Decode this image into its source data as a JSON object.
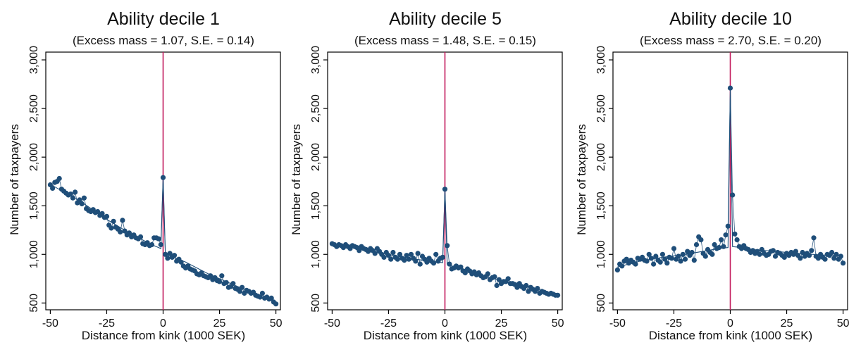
{
  "chart_data": [
    {
      "type": "scatter",
      "title": "Ability decile 1",
      "subtitle": "(Excess mass = 1.07, S.E. = 0.14)",
      "xlabel": "Distance from kink (1000 SEK)",
      "ylabel": "Number of taxpayers",
      "xlim": [
        -52,
        52
      ],
      "ylim": [
        430,
        3080
      ],
      "xticks": [
        -50,
        -25,
        0,
        25,
        50
      ],
      "xtick_labels": [
        "-50",
        "-25",
        "0",
        "25",
        "50"
      ],
      "yticks": [
        500,
        1000,
        1500,
        2000,
        2500,
        3000
      ],
      "ytick_labels": [
        "500",
        "1,000",
        "1,500",
        "2,000",
        "2,500",
        "3,000"
      ],
      "kink_x": 0,
      "colors": {
        "points": "#1f4e79",
        "line": "#1f4e79",
        "kink": "#c2185b",
        "frame": "#000000"
      },
      "series": [
        {
          "x": [
            -50,
            -49,
            -48,
            -47,
            -46,
            -45,
            -44,
            -43,
            -42,
            -41,
            -40,
            -39,
            -38,
            -37,
            -36,
            -35,
            -34,
            -33,
            -32,
            -31,
            -30,
            -29,
            -28,
            -27,
            -26,
            -25,
            -24,
            -23,
            -22,
            -21,
            -20,
            -19,
            -18,
            -17,
            -16,
            -15,
            -14,
            -13,
            -12,
            -11,
            -10,
            -9,
            -8,
            -7,
            -6,
            -5,
            -4,
            -3,
            -2,
            -1,
            0,
            1,
            2,
            3,
            4,
            5,
            6,
            7,
            8,
            9,
            10,
            11,
            12,
            13,
            14,
            15,
            16,
            17,
            18,
            19,
            20,
            21,
            22,
            23,
            24,
            25,
            26,
            27,
            28,
            29,
            30,
            31,
            32,
            33,
            34,
            35,
            36,
            37,
            38,
            39,
            40,
            41,
            42,
            43,
            44,
            45,
            46,
            47,
            48,
            49,
            50
          ],
          "y": [
            1715,
            1680,
            1740,
            1750,
            1780,
            1670,
            1650,
            1630,
            1610,
            1620,
            1580,
            1640,
            1530,
            1560,
            1520,
            1580,
            1470,
            1450,
            1440,
            1460,
            1430,
            1440,
            1400,
            1420,
            1380,
            1390,
            1300,
            1270,
            1340,
            1280,
            1260,
            1230,
            1350,
            1240,
            1200,
            1220,
            1180,
            1200,
            1170,
            1160,
            1180,
            1110,
            1100,
            1120,
            1090,
            1100,
            1170,
            1170,
            1160,
            1100,
            1790,
            1000,
            960,
            1010,
            970,
            990,
            930,
            950,
            920,
            880,
            860,
            880,
            850,
            840,
            830,
            800,
            790,
            810,
            780,
            770,
            760,
            780,
            740,
            760,
            730,
            720,
            780,
            700,
            710,
            660,
            670,
            700,
            650,
            640,
            620,
            660,
            600,
            630,
            620,
            600,
            610,
            580,
            570,
            560,
            600,
            550,
            560,
            540,
            550,
            510,
            490
          ],
          "fit": [
            [
              -50,
              1720
            ],
            [
              -45,
              1655
            ],
            [
              -40,
              1590
            ],
            [
              -35,
              1520
            ],
            [
              -30,
              1440
            ],
            [
              -25,
              1360
            ],
            [
              -20,
              1290
            ],
            [
              -15,
              1220
            ],
            [
              -10,
              1160
            ],
            [
              -5,
              1100
            ],
            [
              -1,
              1060
            ],
            [
              0,
              1790
            ],
            [
              1,
              1000
            ],
            [
              3,
              985
            ],
            [
              10,
              920
            ],
            [
              20,
              800
            ],
            [
              30,
              700
            ],
            [
              40,
              600
            ],
            [
              50,
              505
            ]
          ]
        }
      ]
    },
    {
      "type": "scatter",
      "title": "Ability decile 5",
      "subtitle": "(Excess mass = 1.48, S.E. = 0.15)",
      "xlabel": "Distance from kink (1000 SEK)",
      "ylabel": "Number of taxpayers",
      "xlim": [
        -52,
        52
      ],
      "ylim": [
        430,
        3080
      ],
      "xticks": [
        -50,
        -25,
        0,
        25,
        50
      ],
      "xtick_labels": [
        "-50",
        "-25",
        "0",
        "25",
        "50"
      ],
      "yticks": [
        500,
        1000,
        1500,
        2000,
        2500,
        3000
      ],
      "ytick_labels": [
        "500",
        "1,000",
        "1,500",
        "2,000",
        "2,500",
        "3,000"
      ],
      "kink_x": 0,
      "colors": {
        "points": "#1f4e79",
        "line": "#1f4e79",
        "kink": "#c2185b",
        "frame": "#000000"
      },
      "series": [
        {
          "x": [
            -50,
            -49,
            -48,
            -47,
            -46,
            -45,
            -44,
            -43,
            -42,
            -41,
            -40,
            -39,
            -38,
            -37,
            -36,
            -35,
            -34,
            -33,
            -32,
            -31,
            -30,
            -29,
            -28,
            -27,
            -26,
            -25,
            -24,
            -23,
            -22,
            -21,
            -20,
            -19,
            -18,
            -17,
            -16,
            -15,
            -14,
            -13,
            -12,
            -11,
            -10,
            -9,
            -8,
            -7,
            -6,
            -5,
            -4,
            -3,
            -2,
            -1,
            0,
            1,
            2,
            3,
            4,
            5,
            6,
            7,
            8,
            9,
            10,
            11,
            12,
            13,
            14,
            15,
            16,
            17,
            18,
            19,
            20,
            21,
            22,
            23,
            24,
            25,
            26,
            27,
            28,
            29,
            30,
            31,
            32,
            33,
            34,
            35,
            36,
            37,
            38,
            39,
            40,
            41,
            42,
            43,
            44,
            45,
            46,
            47,
            48,
            49,
            50
          ],
          "y": [
            1110,
            1100,
            1080,
            1100,
            1090,
            1070,
            1100,
            1080,
            1060,
            1090,
            1080,
            1070,
            1040,
            1080,
            1060,
            1050,
            1030,
            1060,
            1040,
            1010,
            1060,
            1030,
            1000,
            970,
            1020,
            990,
            950,
            1020,
            970,
            950,
            1000,
            960,
            940,
            990,
            950,
            1000,
            960,
            930,
            1010,
            900,
            980,
            950,
            920,
            960,
            930,
            910,
            1000,
            930,
            960,
            970,
            1670,
            1090,
            900,
            850,
            860,
            880,
            860,
            870,
            830,
            810,
            850,
            830,
            800,
            820,
            790,
            810,
            780,
            760,
            770,
            800,
            740,
            760,
            770,
            680,
            740,
            700,
            720,
            720,
            750,
            700,
            700,
            690,
            660,
            700,
            670,
            650,
            680,
            620,
            660,
            640,
            620,
            650,
            600,
            620,
            610,
            600,
            590,
            600,
            590,
            580,
            580
          ],
          "fit": [
            [
              -50,
              1105
            ],
            [
              -40,
              1070
            ],
            [
              -30,
              1025
            ],
            [
              -20,
              975
            ],
            [
              -10,
              940
            ],
            [
              -1,
              915
            ],
            [
              0,
              1670
            ],
            [
              1,
              900
            ],
            [
              3,
              880
            ],
            [
              10,
              840
            ],
            [
              20,
              760
            ],
            [
              30,
              700
            ],
            [
              40,
              645
            ],
            [
              50,
              585
            ]
          ]
        }
      ]
    },
    {
      "type": "scatter",
      "title": "Ability decile 10",
      "subtitle": "(Excess mass = 2.70, S.E. = 0.20)",
      "xlabel": "Distance from kink (1000 SEK)",
      "ylabel": "Number of taxpayers",
      "xlim": [
        -52,
        52
      ],
      "ylim": [
        430,
        3080
      ],
      "xticks": [
        -50,
        -25,
        0,
        25,
        50
      ],
      "xtick_labels": [
        "-50",
        "-25",
        "0",
        "25",
        "50"
      ],
      "yticks": [
        500,
        1000,
        1500,
        2000,
        2500,
        3000
      ],
      "ytick_labels": [
        "500",
        "1,000",
        "1,500",
        "2,000",
        "2,500",
        "3,000"
      ],
      "kink_x": 0,
      "colors": {
        "points": "#1f4e79",
        "line": "#1f4e79",
        "kink": "#c2185b",
        "frame": "#000000"
      },
      "series": [
        {
          "x": [
            -50,
            -49,
            -48,
            -47,
            -46,
            -45,
            -44,
            -43,
            -42,
            -41,
            -40,
            -39,
            -38,
            -37,
            -36,
            -35,
            -34,
            -33,
            -32,
            -31,
            -30,
            -29,
            -28,
            -27,
            -26,
            -25,
            -24,
            -23,
            -22,
            -21,
            -20,
            -19,
            -18,
            -17,
            -16,
            -15,
            -14,
            -13,
            -12,
            -11,
            -10,
            -9,
            -8,
            -7,
            -6,
            -5,
            -4,
            -3,
            -2,
            -1,
            0,
            1,
            2,
            3,
            4,
            5,
            6,
            7,
            8,
            9,
            10,
            11,
            12,
            13,
            14,
            15,
            16,
            17,
            18,
            19,
            20,
            21,
            22,
            23,
            24,
            25,
            26,
            27,
            28,
            29,
            30,
            31,
            32,
            33,
            34,
            35,
            36,
            37,
            38,
            39,
            40,
            41,
            42,
            43,
            44,
            45,
            46,
            47,
            48,
            49,
            50
          ],
          "y": [
            840,
            900,
            880,
            930,
            950,
            910,
            940,
            920,
            900,
            960,
            950,
            970,
            940,
            930,
            1000,
            960,
            900,
            980,
            940,
            920,
            1000,
            950,
            910,
            970,
            960,
            1060,
            950,
            980,
            930,
            1000,
            950,
            1030,
            990,
            1020,
            940,
            1100,
            1180,
            1150,
            1010,
            980,
            1050,
            1020,
            1000,
            1100,
            1060,
            1070,
            1150,
            1080,
            1200,
            1290,
            2710,
            1610,
            1210,
            1150,
            1080,
            1060,
            1090,
            1060,
            1050,
            1020,
            1040,
            1010,
            1030,
            1000,
            1050,
            1010,
            990,
            1000,
            1030,
            1040,
            980,
            1020,
            1010,
            990,
            970,
            1010,
            990,
            1020,
            1000,
            1030,
            990,
            960,
            1020,
            980,
            1010,
            990,
            1040,
            1170,
            980,
            960,
            1000,
            970,
            950,
            1000,
            990,
            1020,
            960,
            1000,
            950,
            980,
            910
          ],
          "fit": [
            [
              -50,
              870
            ],
            [
              -40,
              930
            ],
            [
              -30,
              970
            ],
            [
              -20,
              1000
            ],
            [
              -10,
              1040
            ],
            [
              -5,
              1060
            ],
            [
              -1,
              1070
            ],
            [
              0,
              2710
            ],
            [
              1,
              1080
            ],
            [
              3,
              1075
            ],
            [
              10,
              1050
            ],
            [
              20,
              1030
            ],
            [
              30,
              1010
            ],
            [
              40,
              995
            ],
            [
              50,
              985
            ]
          ]
        }
      ]
    }
  ]
}
